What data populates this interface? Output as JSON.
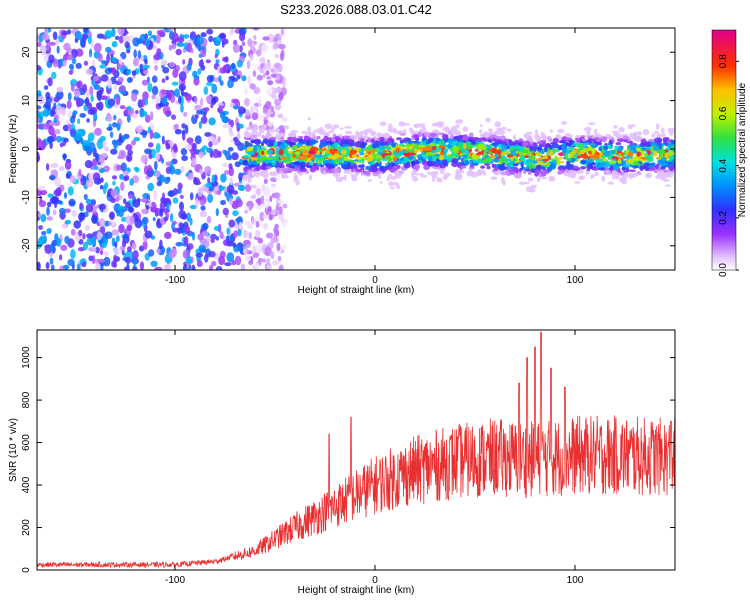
{
  "title": "S233.2026.088.03.01.C42",
  "chart_data": [
    {
      "type": "heatmap",
      "xlabel": "Height of straight line (km)",
      "ylabel": "Frequency (Hz)",
      "xlim": [
        -169,
        150
      ],
      "ylim": [
        -25,
        25
      ],
      "xticks": [
        "-100",
        "0",
        "100"
      ],
      "yticks": [
        "-20",
        "-10",
        "0",
        "10",
        "20"
      ],
      "colorbar": {
        "label": "Normalized spectral amplitude",
        "range": [
          0,
          0.92
        ],
        "ticks": [
          "0.0",
          "0.2",
          "0.4",
          "0.6",
          "0.8"
        ]
      },
      "ridge": [
        [
          -65,
          -1
        ],
        [
          -40,
          -1
        ],
        [
          -20,
          -1
        ],
        [
          0,
          -1.5
        ],
        [
          20,
          -0.5
        ],
        [
          40,
          -0.5
        ],
        [
          60,
          -1
        ],
        [
          80,
          -2
        ],
        [
          100,
          -1
        ],
        [
          120,
          -1.5
        ],
        [
          150,
          -1
        ]
      ],
      "noise_region_x": [
        -169,
        -65
      ],
      "noise_amplitude": 0.35,
      "ridge_amplitude": 0.9
    },
    {
      "type": "line",
      "xlabel": "Height of straight line (km)",
      "ylabel": "SNR (10 * v/v)",
      "xlim": [
        -169,
        150
      ],
      "ylim": [
        0,
        1130
      ],
      "xticks": [
        "-100",
        "0",
        "100"
      ],
      "yticks": [
        "0",
        "200",
        "400",
        "600",
        "800",
        "1000"
      ],
      "color": "#e83030",
      "envelope": [
        [
          -169,
          25
        ],
        [
          -100,
          25
        ],
        [
          -80,
          40
        ],
        [
          -60,
          90
        ],
        [
          -40,
          200
        ],
        [
          -20,
          300
        ],
        [
          0,
          400
        ],
        [
          20,
          470
        ],
        [
          40,
          510
        ],
        [
          60,
          530
        ],
        [
          80,
          520
        ],
        [
          100,
          540
        ],
        [
          120,
          540
        ],
        [
          150,
          530
        ]
      ],
      "peaks": [
        [
          -23,
          640
        ],
        [
          -12,
          720
        ],
        [
          72,
          880
        ],
        [
          76,
          1000
        ],
        [
          80,
          1050
        ],
        [
          83,
          1120
        ],
        [
          88,
          950
        ],
        [
          95,
          860
        ],
        [
          148,
          700
        ]
      ]
    }
  ]
}
